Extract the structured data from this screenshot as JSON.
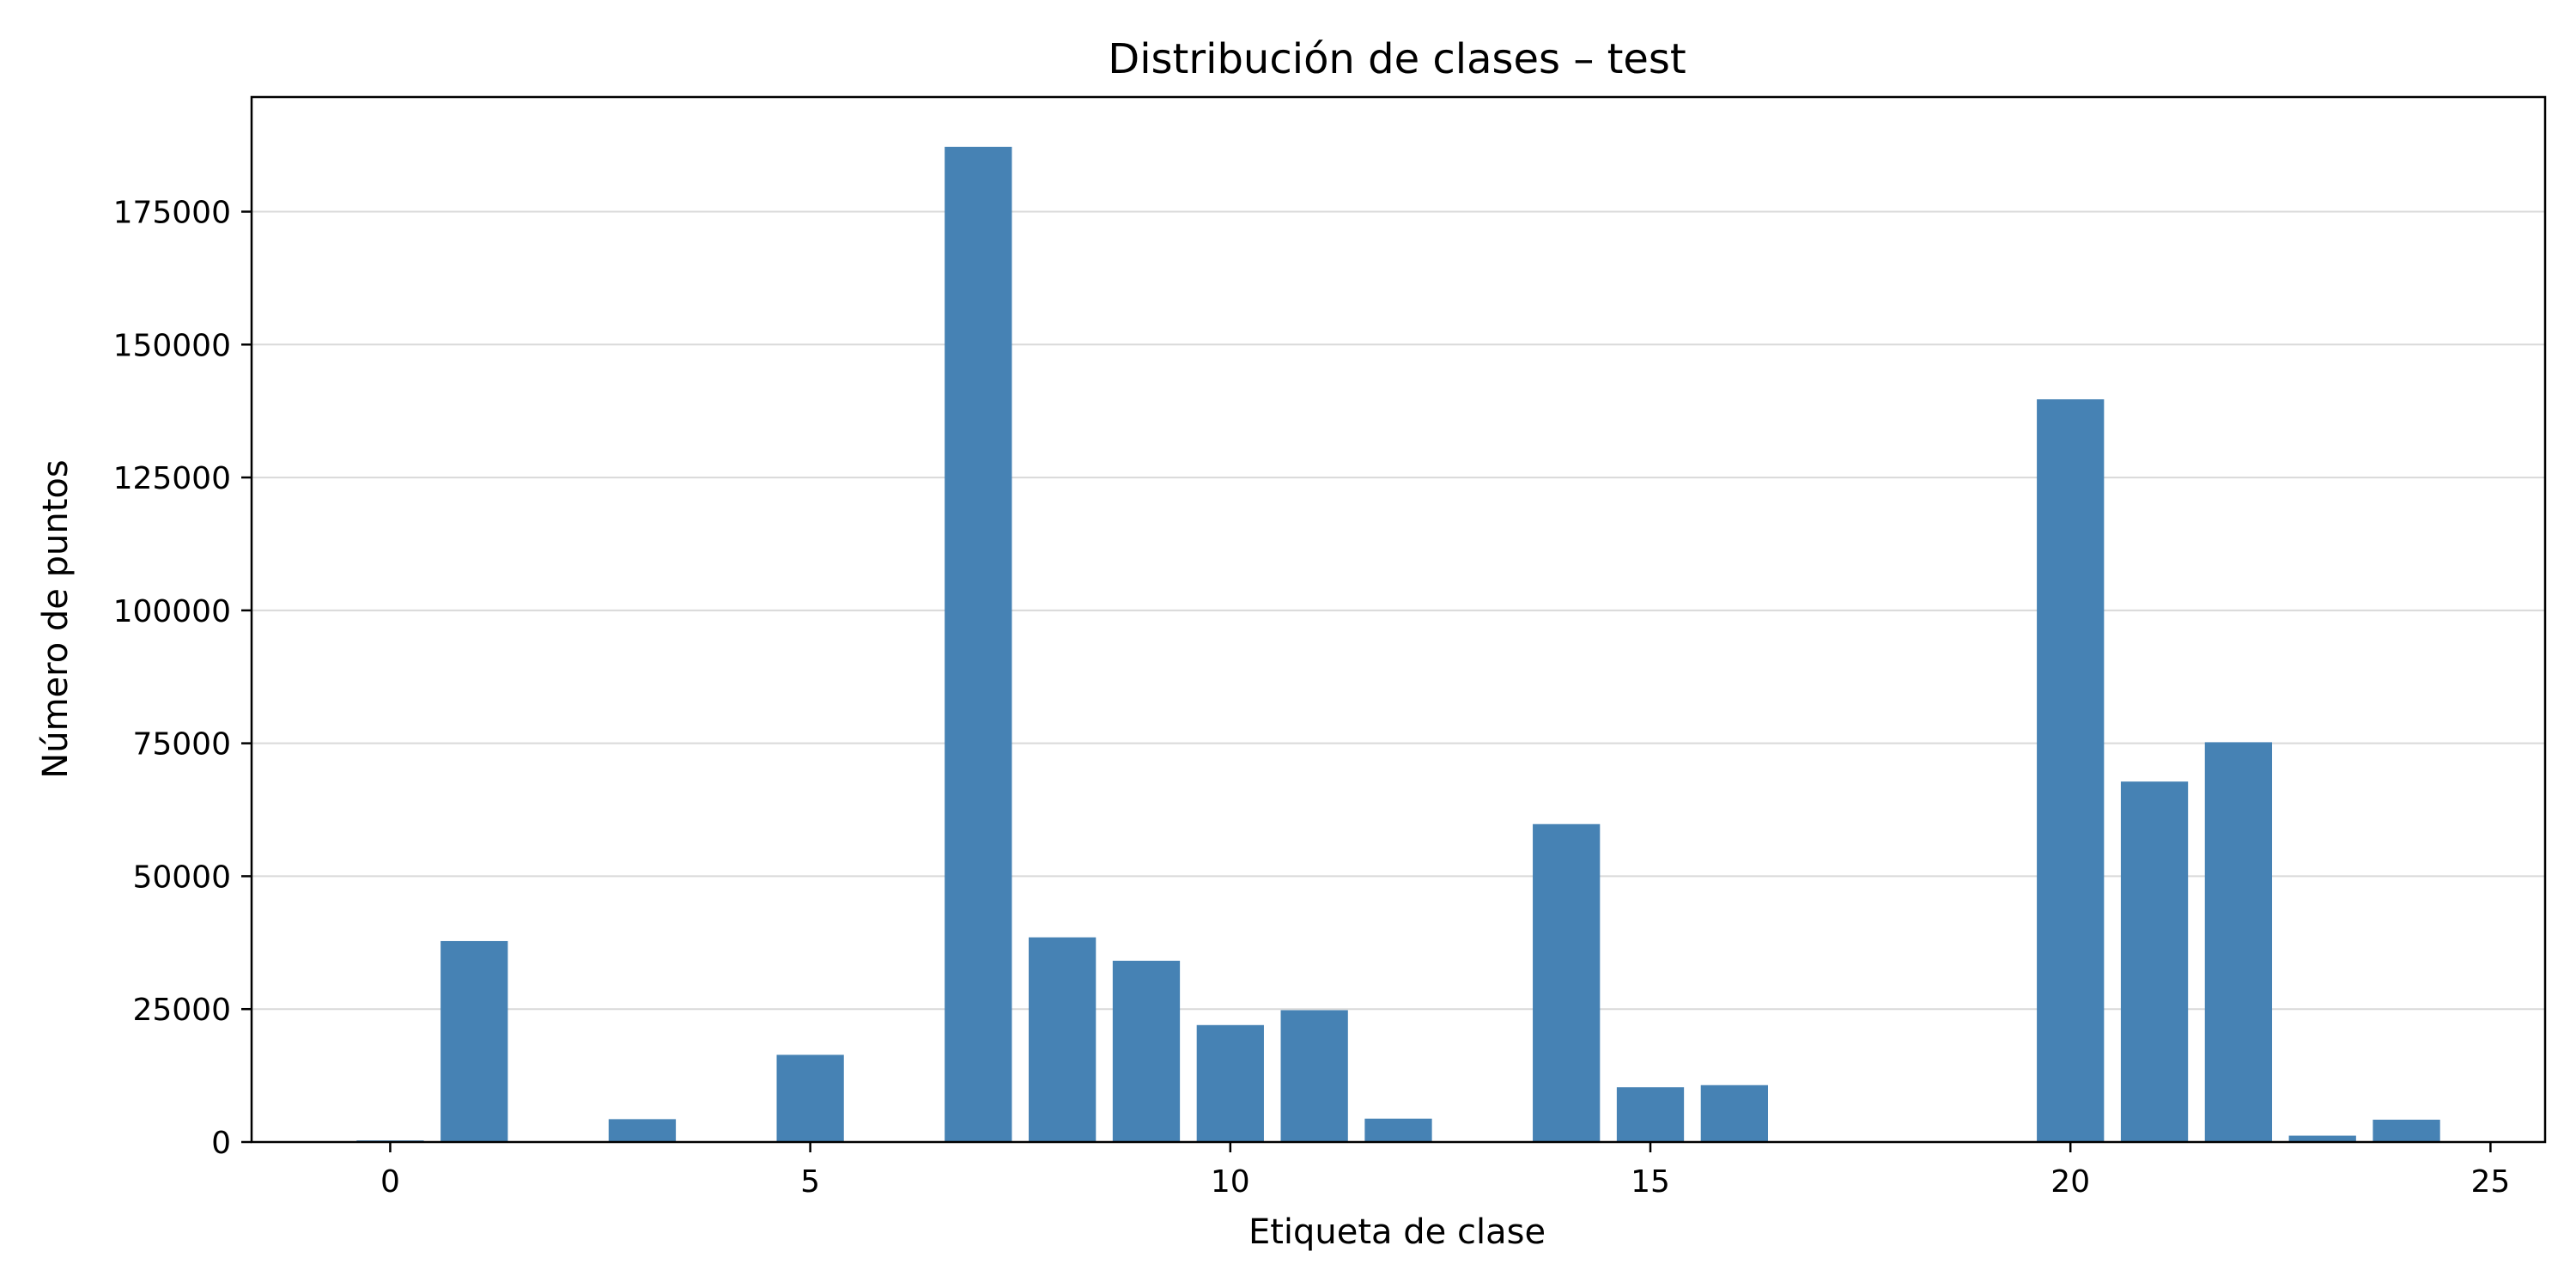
{
  "chart_data": {
    "type": "bar",
    "title": "Distribución de clases – test",
    "xlabel": "Etiqueta de clase",
    "ylabel": "Número de puntos",
    "x": [
      0,
      1,
      3,
      5,
      7,
      8,
      9,
      10,
      11,
      12,
      14,
      15,
      16,
      20,
      21,
      22,
      23,
      24
    ],
    "values": [
      300,
      37800,
      4300,
      16400,
      187200,
      38500,
      34100,
      22000,
      24800,
      4400,
      59800,
      10300,
      10700,
      139700,
      67800,
      75200,
      1200,
      4200
    ],
    "xlim": [
      -1.65,
      25.65
    ],
    "ylim": [
      0,
      196560
    ],
    "xticks": [
      0,
      5,
      10,
      15,
      20,
      25
    ],
    "yticks": [
      0,
      25000,
      50000,
      75000,
      100000,
      125000,
      150000,
      175000
    ],
    "grid": "y",
    "bar_color": "#4682b4",
    "grid_color": "#d9d9d9",
    "legend": "none"
  }
}
